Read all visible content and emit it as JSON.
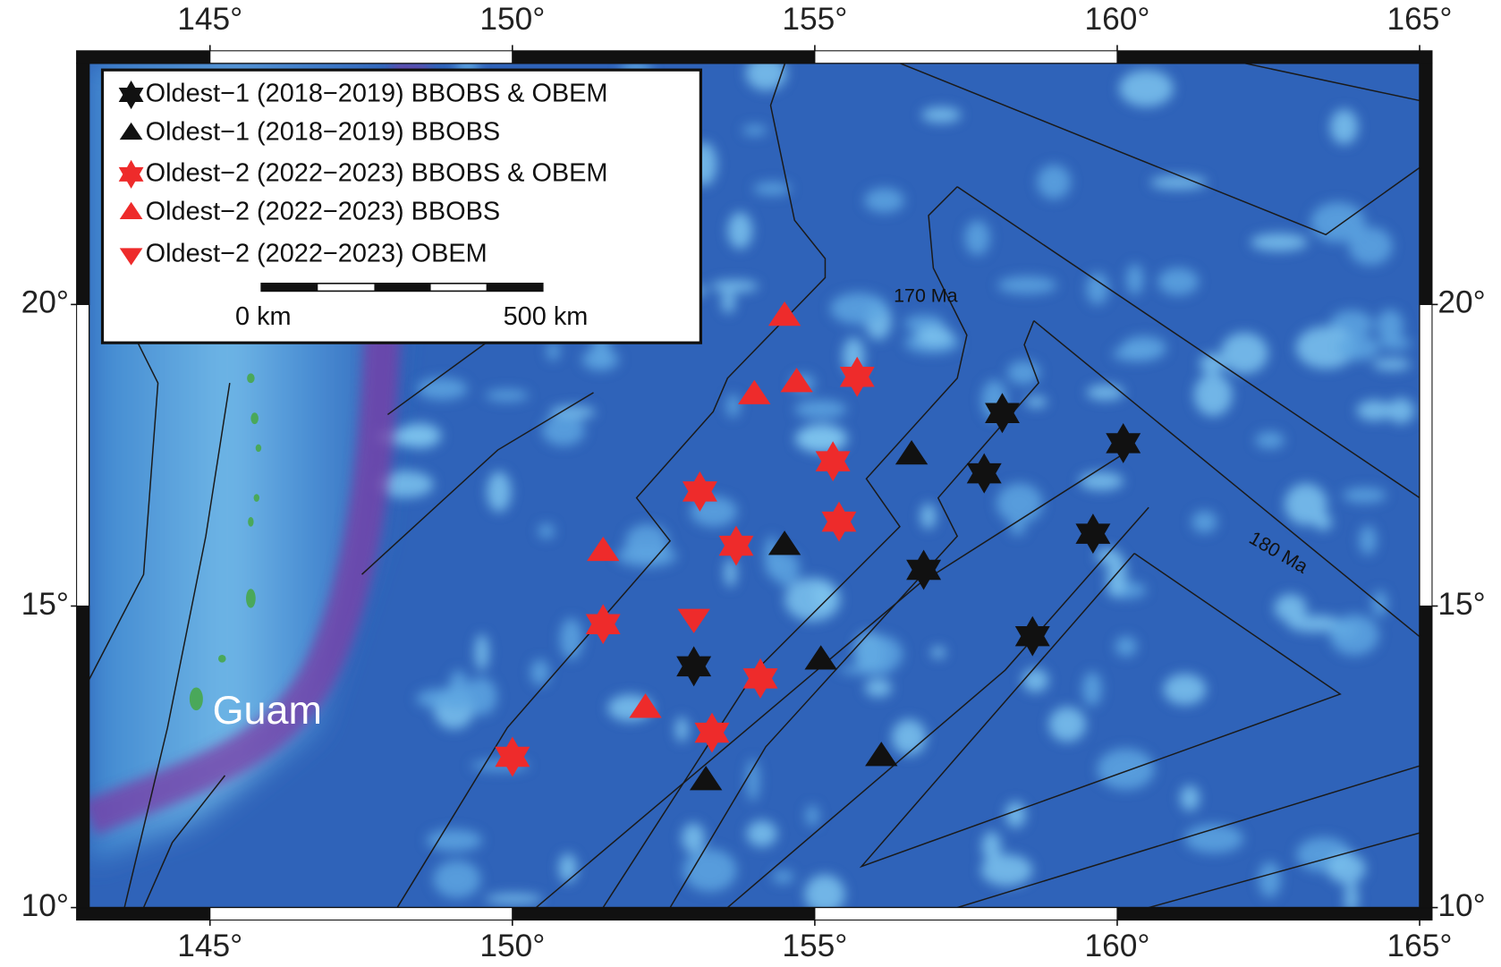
{
  "chart_data": {
    "type": "scatter",
    "xlim": [
      143,
      165
    ],
    "ylim": [
      10,
      24
    ],
    "xticks": [
      {
        "value": 145,
        "label": "145°"
      },
      {
        "value": 150,
        "label": "150°"
      },
      {
        "value": 155,
        "label": "155°"
      },
      {
        "value": 160,
        "label": "160°"
      },
      {
        "value": 165,
        "label": "165°"
      }
    ],
    "yticks": [
      {
        "value": 10,
        "label": "10°"
      },
      {
        "value": 15,
        "label": "15°"
      },
      {
        "value": 20,
        "label": "20°"
      }
    ],
    "series": [
      {
        "name": "Oldest−1 (2018−2019) BBOBS & OBEM",
        "color": "#111111",
        "marker": "star",
        "x": [
          158.1,
          160.1,
          157.8,
          159.6,
          156.8,
          158.6,
          153.0
        ],
        "values": [
          18.2,
          17.7,
          17.2,
          16.2,
          15.6,
          14.5,
          14.0
        ]
      },
      {
        "name": "Oldest−1 (2018−2019) BBOBS",
        "color": "#111111",
        "marker": "triangle",
        "x": [
          156.6,
          154.5,
          155.1,
          153.2,
          156.1
        ],
        "values": [
          17.5,
          16.0,
          14.1,
          12.1,
          12.5
        ]
      },
      {
        "name": "Oldest−2 (2022−2023) BBOBS & OBEM",
        "color": "#ee2b2b",
        "marker": "star",
        "x": [
          155.7,
          155.3,
          153.1,
          155.4,
          153.7,
          151.5,
          154.1,
          153.3,
          150.0
        ],
        "values": [
          18.8,
          17.4,
          16.9,
          16.4,
          16.0,
          14.7,
          13.8,
          12.9,
          12.5
        ]
      },
      {
        "name": "Oldest−2 (2022−2023) BBOBS",
        "color": "#ee2b2b",
        "marker": "triangle",
        "x": [
          154.5,
          154.7,
          154.0,
          151.5,
          152.2
        ],
        "values": [
          19.8,
          18.7,
          18.5,
          15.9,
          13.3
        ]
      },
      {
        "name": "Oldest−2 (2022−2023) OBEM",
        "color": "#ee2b2b",
        "marker": "triangle-down",
        "x": [
          153.0
        ],
        "values": [
          14.8
        ]
      }
    ],
    "scale_bar": {
      "labels": [
        "0 km",
        "500 km"
      ]
    },
    "annotations": [
      "170 Ma",
      "180 Ma",
      "Guam"
    ]
  }
}
